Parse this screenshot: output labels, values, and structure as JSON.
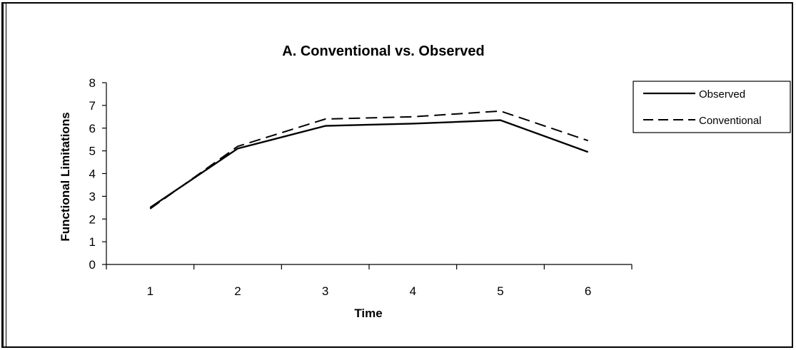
{
  "chart_data": {
    "type": "line",
    "title": "A. Conventional vs. Observed",
    "xlabel": "Time",
    "ylabel": "Functional Limitations",
    "x": [
      1,
      2,
      3,
      4,
      5,
      6
    ],
    "x_tick_labels": [
      "1",
      "2",
      "3",
      "4",
      "5",
      "6"
    ],
    "y_ticks": [
      0,
      1,
      2,
      3,
      4,
      5,
      6,
      7,
      8
    ],
    "ylim": [
      0,
      8
    ],
    "grid": false,
    "legend_position": "right",
    "series": [
      {
        "name": "Observed",
        "style": "solid",
        "color": "#000000",
        "values": [
          2.5,
          5.1,
          6.1,
          6.2,
          6.35,
          4.95
        ]
      },
      {
        "name": "Conventional",
        "style": "dashed",
        "color": "#000000",
        "values": [
          2.45,
          5.2,
          6.4,
          6.5,
          6.75,
          5.45
        ]
      }
    ]
  }
}
